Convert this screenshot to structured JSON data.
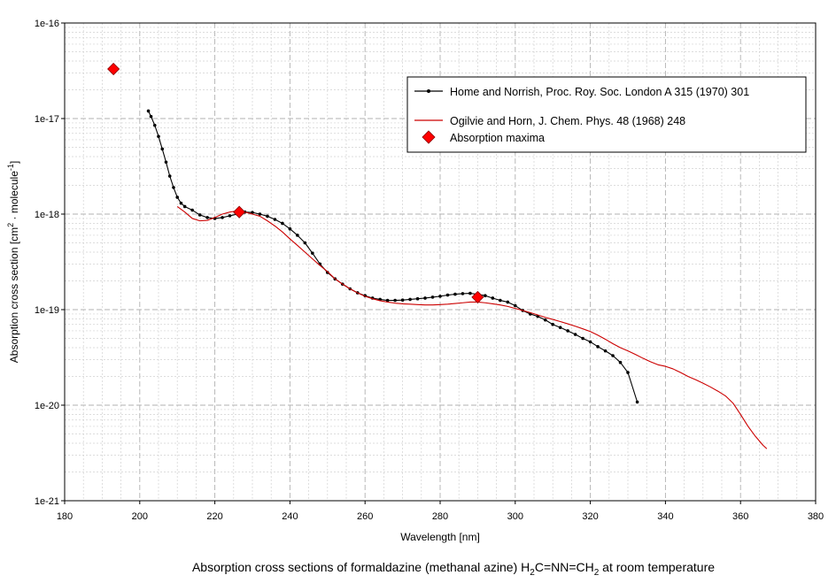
{
  "chart_data": {
    "type": "line",
    "yscale": "log",
    "xlabel": "Wavelength [nm]",
    "ylabel": "Absorption cross section [cm² · molecule⁻¹]",
    "ylabel_parts": [
      "Absorption cross section [cm",
      "2",
      " · molecule",
      "-1",
      "]"
    ],
    "xlim": [
      180,
      380
    ],
    "ylim": [
      1e-21,
      1e-16
    ],
    "xticks": [
      180,
      200,
      220,
      240,
      260,
      280,
      300,
      320,
      340,
      360,
      380
    ],
    "yticks": [
      1e-21,
      1e-20,
      1e-19,
      1e-18,
      1e-17,
      1e-16
    ],
    "ytick_labels": [
      "1e-21",
      "1e-20",
      "1e-19",
      "1e-18",
      "1e-17",
      "1e-16"
    ],
    "grid": true,
    "legend": "top-right",
    "series": [
      {
        "name": "Home and Norrish, Proc. Roy. Soc. London A 315 (1970) 301",
        "color": "#000000",
        "marker": "dot",
        "x": [
          202.3,
          203,
          204,
          205,
          206,
          207,
          208,
          209,
          210,
          211,
          212,
          214,
          216,
          218,
          220,
          222,
          224,
          226,
          228,
          230,
          232,
          234,
          236,
          238,
          240,
          242,
          244,
          246,
          248,
          250,
          252,
          254,
          256,
          258,
          260,
          262,
          264,
          266,
          268,
          270,
          272,
          274,
          276,
          278,
          280,
          282,
          284,
          286,
          288,
          290,
          292,
          294,
          296,
          298,
          300,
          302,
          304,
          306,
          308,
          310,
          312,
          314,
          316,
          318,
          320,
          322,
          324,
          326,
          328,
          330,
          332.5
        ],
        "y": [
          1.2e-17,
          1.05e-17,
          8.5e-18,
          6.5e-18,
          4.8e-18,
          3.5e-18,
          2.5e-18,
          1.9e-18,
          1.5e-18,
          1.3e-18,
          1.2e-18,
          1.1e-18,
          9.8e-19,
          9.2e-19,
          9e-19,
          9.2e-19,
          9.6e-19,
          1e-18,
          1.05e-18,
          1.04e-18,
          1e-18,
          9.5e-19,
          8.8e-19,
          8e-19,
          7e-19,
          6e-19,
          5e-19,
          3.9e-19,
          3e-19,
          2.45e-19,
          2.1e-19,
          1.85e-19,
          1.65e-19,
          1.5e-19,
          1.4e-19,
          1.32e-19,
          1.28e-19,
          1.25e-19,
          1.25e-19,
          1.26e-19,
          1.28e-19,
          1.3e-19,
          1.32e-19,
          1.35e-19,
          1.38e-19,
          1.42e-19,
          1.45e-19,
          1.47e-19,
          1.48e-19,
          1.45e-19,
          1.4e-19,
          1.32e-19,
          1.25e-19,
          1.2e-19,
          1.1e-19,
          9.8e-20,
          9e-20,
          8.5e-20,
          7.8e-20,
          7e-20,
          6.5e-20,
          6e-20,
          5.5e-20,
          5e-20,
          4.6e-20,
          4.1e-20,
          3.7e-20,
          3.3e-20,
          2.8e-20,
          2.2e-20,
          1.08e-20
        ]
      },
      {
        "name": "Ogilvie and  Horn, J. Chem. Phys. 48 (1968) 248",
        "color": "#cc0000",
        "marker": "none",
        "x": [
          210,
          212,
          214,
          216,
          218,
          220,
          222,
          224,
          226,
          228,
          230,
          232,
          234,
          236,
          238,
          240,
          242,
          244,
          246,
          248,
          250,
          252,
          254,
          256,
          258,
          260,
          262,
          264,
          266,
          268,
          270,
          272,
          274,
          276,
          278,
          280,
          282,
          284,
          286,
          288,
          290,
          292,
          294,
          296,
          298,
          300,
          302,
          304,
          306,
          308,
          310,
          312,
          314,
          316,
          318,
          320,
          322,
          324,
          326,
          328,
          330,
          332,
          334,
          336,
          338,
          340,
          342,
          344,
          346,
          348,
          350,
          352,
          354,
          356,
          358,
          360,
          362,
          364,
          366,
          367
        ],
        "y": [
          1.2e-18,
          1.05e-18,
          9e-19,
          8.5e-19,
          8.6e-19,
          9.2e-19,
          1e-18,
          1.05e-18,
          1.08e-18,
          1.05e-18,
          1e-18,
          9.5e-19,
          8.5e-19,
          7.5e-19,
          6.5e-19,
          5.5e-19,
          4.7e-19,
          4e-19,
          3.4e-19,
          2.9e-19,
          2.5e-19,
          2.1e-19,
          1.85e-19,
          1.65e-19,
          1.5e-19,
          1.38e-19,
          1.3e-19,
          1.24e-19,
          1.2e-19,
          1.17e-19,
          1.15e-19,
          1.14e-19,
          1.13e-19,
          1.12e-19,
          1.12e-19,
          1.13e-19,
          1.14e-19,
          1.16e-19,
          1.18e-19,
          1.2e-19,
          1.2e-19,
          1.18e-19,
          1.15e-19,
          1.12e-19,
          1.08e-19,
          1.03e-19,
          9.8e-20,
          9.3e-20,
          8.8e-20,
          8.3e-20,
          7.9e-20,
          7.5e-20,
          7.1e-20,
          6.7e-20,
          6.3e-20,
          5.9e-20,
          5.4e-20,
          4.9e-20,
          4.4e-20,
          4e-20,
          3.7e-20,
          3.4e-20,
          3.1e-20,
          2.85e-20,
          2.65e-20,
          2.55e-20,
          2.4e-20,
          2.2e-20,
          2e-20,
          1.85e-20,
          1.7e-20,
          1.55e-20,
          1.4e-20,
          1.25e-20,
          1.05e-20,
          8e-21,
          6e-21,
          4.7e-21,
          3.8e-21,
          3.5e-21
        ]
      },
      {
        "name": "Absorption maxima",
        "color": "#ff0000",
        "marker": "diamond",
        "x": [
          193,
          226.5,
          290
        ],
        "y": [
          3.3e-17,
          1.05e-18,
          1.35e-19
        ]
      }
    ]
  },
  "caption": {
    "text_before": "Absorption cross sections of formaldazine (methanal azine) H",
    "sub1": "2",
    "text_mid": "C=NN=CH",
    "sub2": "2",
    "text_after": " at room temperature"
  }
}
